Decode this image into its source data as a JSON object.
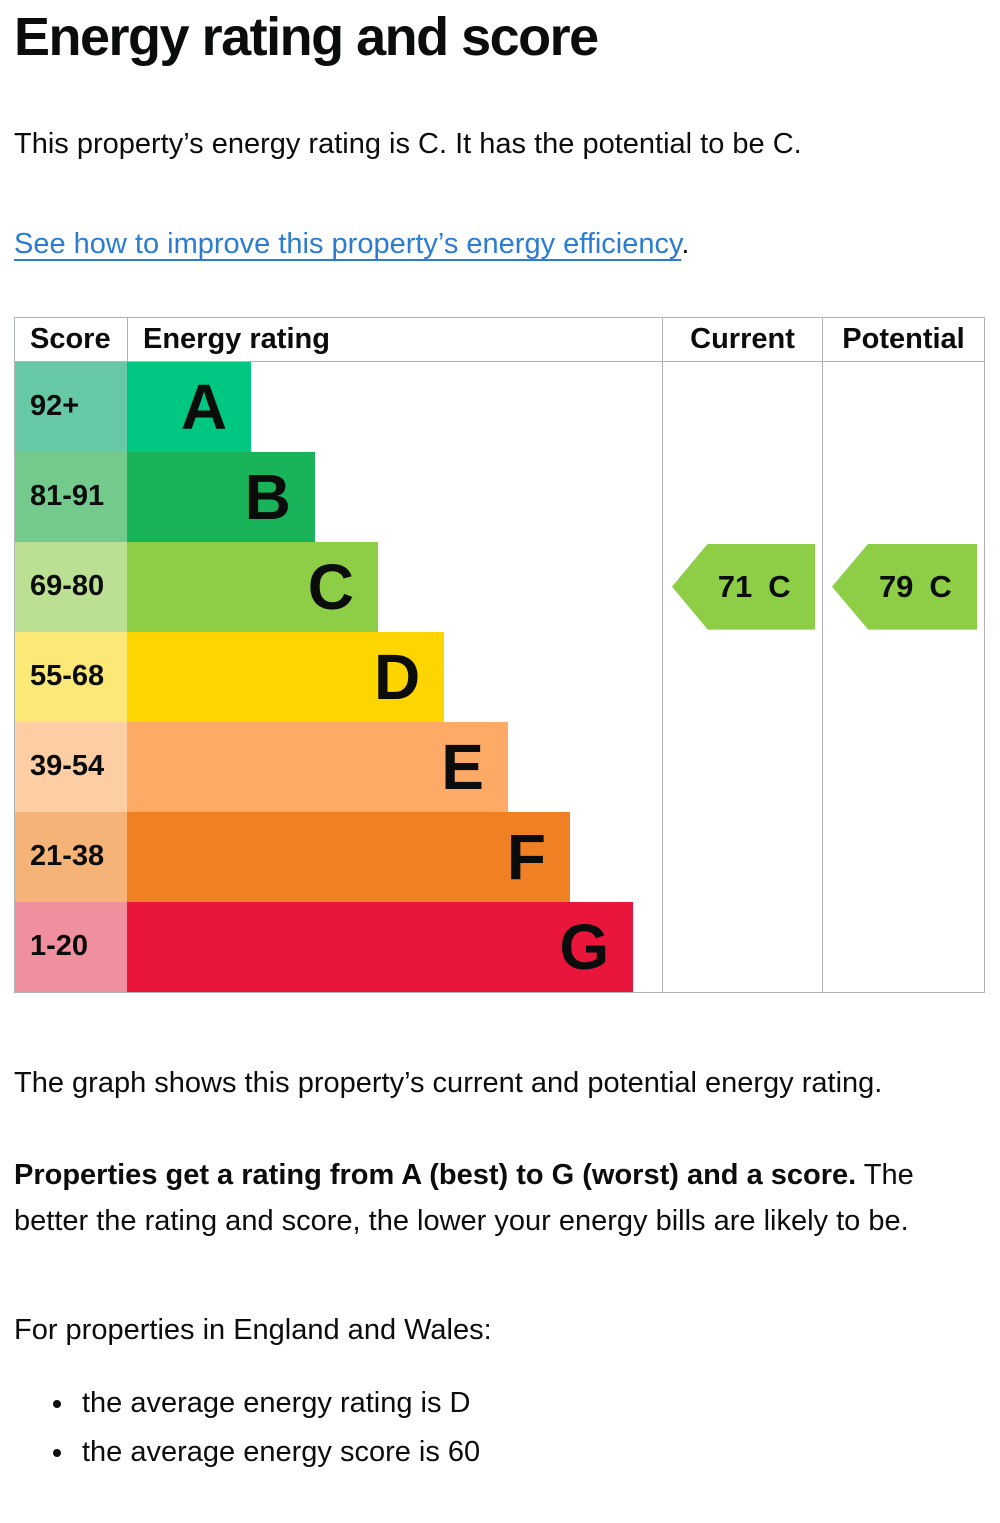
{
  "page": {
    "title": "Energy rating and score",
    "intro": "This property’s energy rating is C. It has the potential to be C.",
    "improve_link": "See how to improve this property’s energy efficiency",
    "improve_link_suffix": ".",
    "graph_caption": "The graph shows this property’s current and potential energy rating.",
    "explain_bold": "Properties get a rating from A (best) to G (worst) and a score.",
    "explain_rest": " The better the rating and score, the lower your energy bills are likely to be.",
    "regions_intro": "For properties in England and Wales:",
    "average_points": [
      "the average energy rating is D",
      "the average energy score is 60"
    ]
  },
  "chart_data": {
    "type": "table",
    "title": "Energy rating and score",
    "columns": [
      "Score",
      "Energy rating",
      "Current",
      "Potential"
    ],
    "bands": [
      {
        "score_range": "92+",
        "letter": "A",
        "bar_color": "#00c781",
        "score_cell_color": "#66c8a4",
        "bar_width_pct": 23.2
      },
      {
        "score_range": "81-91",
        "letter": "B",
        "bar_color": "#19b459",
        "score_cell_color": "#74ca8c",
        "bar_width_pct": 35.1
      },
      {
        "score_range": "69-80",
        "letter": "C",
        "bar_color": "#8dce46",
        "score_cell_color": "#bce093",
        "bar_width_pct": 46.9
      },
      {
        "score_range": "55-68",
        "letter": "D",
        "bar_color": "#ffd500",
        "score_cell_color": "#fce876",
        "bar_width_pct": 59.3
      },
      {
        "score_range": "39-54",
        "letter": "E",
        "bar_color": "#fcaa65",
        "score_cell_color": "#fdcda4",
        "bar_width_pct": 71.2
      },
      {
        "score_range": "21-38",
        "letter": "F",
        "bar_color": "#ef8023",
        "score_cell_color": "#f5b377",
        "bar_width_pct": 82.8
      },
      {
        "score_range": "1-20",
        "letter": "G",
        "bar_color": "#e9153b",
        "score_cell_color": "#f08f9d",
        "bar_width_pct": 94.6
      }
    ],
    "current": {
      "score": 71,
      "band": "C",
      "band_index": 2,
      "arrow_color": "#8dce46"
    },
    "potential": {
      "score": 79,
      "band": "C",
      "band_index": 2,
      "arrow_color": "#8dce46"
    },
    "layout": {
      "legend": "none",
      "grid": "off",
      "orientation": "horizontal-bars"
    }
  },
  "colors": {
    "text": "#0b0c0c",
    "link": "#2b7cd2",
    "border": "#b1b4b6"
  }
}
